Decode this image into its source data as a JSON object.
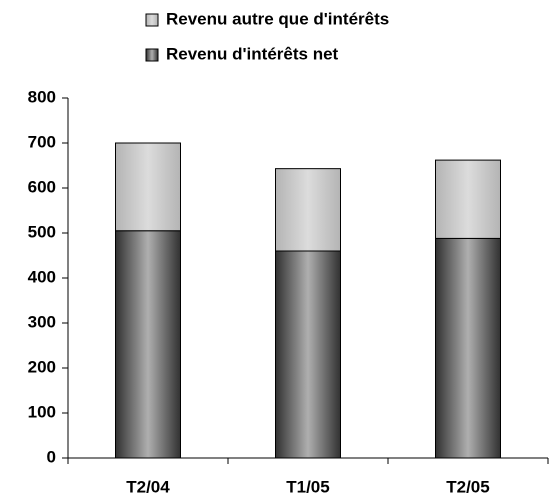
{
  "chart_data": {
    "type": "stacked_bar",
    "categories": [
      "T2/04",
      "T1/05",
      "T2/05"
    ],
    "series": [
      {
        "name": "Revenu d'intérêts net",
        "color": "#8c8c8c",
        "values": [
          505,
          460,
          488
        ]
      },
      {
        "name": "Revenu autre que d'intérêts",
        "color": "#dcdcdc",
        "values": [
          195,
          183,
          174
        ]
      }
    ],
    "ylim": [
      0,
      800
    ],
    "yticks": [
      0,
      100,
      200,
      300,
      400,
      500,
      600,
      700,
      800
    ],
    "grid": false,
    "legend": "top"
  }
}
